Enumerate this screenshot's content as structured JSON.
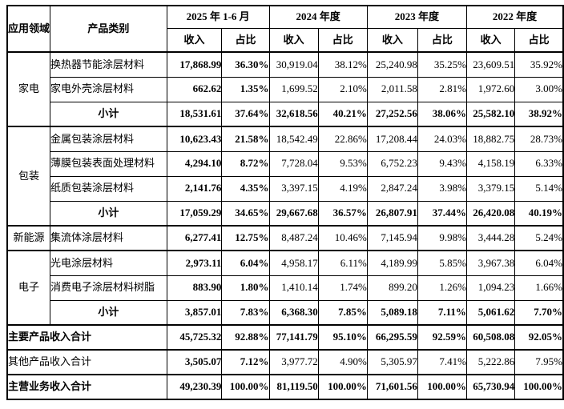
{
  "table": {
    "header": {
      "col_app_field": "应用领域",
      "col_product_category": "产品类别",
      "periods": [
        {
          "label": "2025 年 1-6 月"
        },
        {
          "label": "2024 年度"
        },
        {
          "label": "2023 年度"
        },
        {
          "label": "2022 年度"
        }
      ],
      "sub_revenue": "收入",
      "sub_share": "占比"
    },
    "rows": [
      {
        "field": "家电",
        "field_rowspan": 3,
        "category": "换热器节能涂层材料",
        "group_start": true,
        "values": [
          "17,868.99",
          "36.30%",
          "30,919.04",
          "38.12%",
          "25,240.98",
          "35.25%",
          "23,609.51",
          "35.92%"
        ]
      },
      {
        "category": "家电外壳涂层材料",
        "values": [
          "662.62",
          "1.35%",
          "1,699.52",
          "2.10%",
          "2,011.58",
          "2.81%",
          "1,972.60",
          "3.00%"
        ]
      },
      {
        "category": "小计",
        "subtotal": true,
        "values": [
          "18,531.61",
          "37.64%",
          "32,618.56",
          "40.21%",
          "27,252.56",
          "38.06%",
          "25,582.10",
          "38.92%"
        ]
      },
      {
        "field": "包装",
        "field_rowspan": 4,
        "category": "金属包装涂层材料",
        "group_start": true,
        "values": [
          "10,623.43",
          "21.58%",
          "18,542.49",
          "22.86%",
          "17,208.44",
          "24.03%",
          "18,882.75",
          "28.73%"
        ]
      },
      {
        "category": "薄膜包装表面处理材料",
        "values": [
          "4,294.10",
          "8.72%",
          "7,728.04",
          "9.53%",
          "6,752.23",
          "9.43%",
          "4,158.19",
          "6.33%"
        ]
      },
      {
        "category": "纸质包装涂层材料",
        "values": [
          "2,141.76",
          "4.35%",
          "3,397.15",
          "4.19%",
          "2,847.24",
          "3.98%",
          "3,379.15",
          "5.14%"
        ]
      },
      {
        "category": "小计",
        "subtotal": true,
        "values": [
          "17,059.29",
          "34.65%",
          "29,667.68",
          "36.57%",
          "26,807.91",
          "37.44%",
          "26,420.08",
          "40.19%"
        ]
      },
      {
        "field": "新能源",
        "field_rowspan": 1,
        "category": "集流体涂层材料",
        "group_start": true,
        "values": [
          "6,277.41",
          "12.75%",
          "8,487.24",
          "10.46%",
          "7,145.94",
          "9.98%",
          "3,444.28",
          "5.24%"
        ]
      },
      {
        "field": "电子",
        "field_rowspan": 3,
        "category": "光电涂层材料",
        "group_start": true,
        "values": [
          "2,973.11",
          "6.04%",
          "4,958.17",
          "6.11%",
          "4,189.99",
          "5.85%",
          "3,967.38",
          "6.04%"
        ]
      },
      {
        "category": "消费电子涂层材料树脂",
        "values": [
          "883.90",
          "1.80%",
          "1,410.14",
          "1.74%",
          "899.20",
          "1.26%",
          "1,094.23",
          "1.66%"
        ]
      },
      {
        "category": "小计",
        "subtotal": true,
        "values": [
          "3,857.01",
          "7.83%",
          "6,368.30",
          "7.85%",
          "5,089.18",
          "7.11%",
          "5,061.62",
          "7.70%"
        ]
      },
      {
        "merged": "主要产品收入合计",
        "bold": true,
        "group_start": true,
        "values": [
          "45,725.32",
          "92.88%",
          "77,141.79",
          "95.10%",
          "66,295.59",
          "92.59%",
          "60,508.08",
          "92.05%"
        ]
      },
      {
        "merged": "其他产品收入合计",
        "bold": false,
        "group_start": true,
        "values": [
          "3,505.07",
          "7.12%",
          "3,977.72",
          "4.90%",
          "5,305.97",
          "7.41%",
          "5,222.86",
          "7.95%"
        ]
      },
      {
        "merged": "主营业务收入合计",
        "bold": true,
        "group_start": true,
        "values": [
          "49,230.39",
          "100.00%",
          "81,119.50",
          "100.00%",
          "71,601.56",
          "100.00%",
          "65,730.94",
          "100.00%"
        ]
      }
    ]
  },
  "colors": {
    "border": "#000000",
    "text": "#000000",
    "background": "#ffffff"
  }
}
